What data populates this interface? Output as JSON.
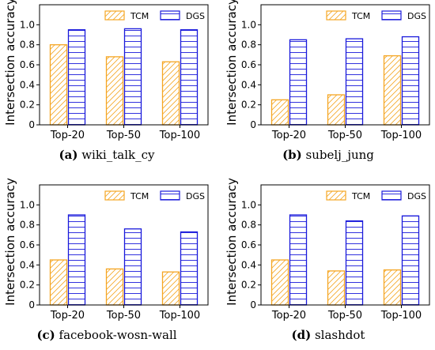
{
  "chart_data": [
    {
      "type": "bar",
      "caption_tag": "(a)",
      "caption": "wiki_talk_cy",
      "ylabel": "Intersection accuracy",
      "categories": [
        "Top-20",
        "Top-50",
        "Top-100"
      ],
      "yticks": [
        "0",
        "0.2",
        "0.4",
        "0.6",
        "0.8",
        "1.0"
      ],
      "ylim": [
        0,
        1.2
      ],
      "legend": "top-right",
      "series": [
        {
          "name": "TCM",
          "values": [
            0.8,
            0.68,
            0.63
          ]
        },
        {
          "name": "DGS",
          "values": [
            0.95,
            0.96,
            0.95
          ]
        }
      ]
    },
    {
      "type": "bar",
      "caption_tag": "(b)",
      "caption": "subelj_jung",
      "ylabel": "Intersection accuracy",
      "categories": [
        "Top-20",
        "Top-50",
        "Top-100"
      ],
      "yticks": [
        "0",
        "0.2",
        "0.4",
        "0.6",
        "0.8",
        "1.0"
      ],
      "ylim": [
        0,
        1.2
      ],
      "legend": "top-right",
      "series": [
        {
          "name": "TCM",
          "values": [
            0.25,
            0.3,
            0.69
          ]
        },
        {
          "name": "DGS",
          "values": [
            0.85,
            0.86,
            0.88
          ]
        }
      ]
    },
    {
      "type": "bar",
      "caption_tag": "(c)",
      "caption": "facebook-wosn-wall",
      "ylabel": "Intersection accuracy",
      "categories": [
        "Top-20",
        "Top-50",
        "Top-100"
      ],
      "yticks": [
        "0",
        "0.2",
        "0.4",
        "0.6",
        "0.8",
        "1.0"
      ],
      "ylim": [
        0,
        1.2
      ],
      "legend": "top-right",
      "series": [
        {
          "name": "TCM",
          "values": [
            0.45,
            0.36,
            0.33
          ]
        },
        {
          "name": "DGS",
          "values": [
            0.9,
            0.76,
            0.73
          ]
        }
      ]
    },
    {
      "type": "bar",
      "caption_tag": "(d)",
      "caption": "slashdot",
      "ylabel": "Intersection accuracy",
      "categories": [
        "Top-20",
        "Top-50",
        "Top-100"
      ],
      "yticks": [
        "0",
        "0.2",
        "0.4",
        "0.6",
        "0.8",
        "1.0"
      ],
      "ylim": [
        0,
        1.2
      ],
      "legend": "top-right",
      "series": [
        {
          "name": "TCM",
          "values": [
            0.45,
            0.34,
            0.35
          ]
        },
        {
          "name": "DGS",
          "values": [
            0.9,
            0.84,
            0.89
          ]
        }
      ]
    }
  ],
  "colors": {
    "TCM": "#f5a623",
    "DGS": "#1a1adb",
    "axis": "#000000"
  }
}
